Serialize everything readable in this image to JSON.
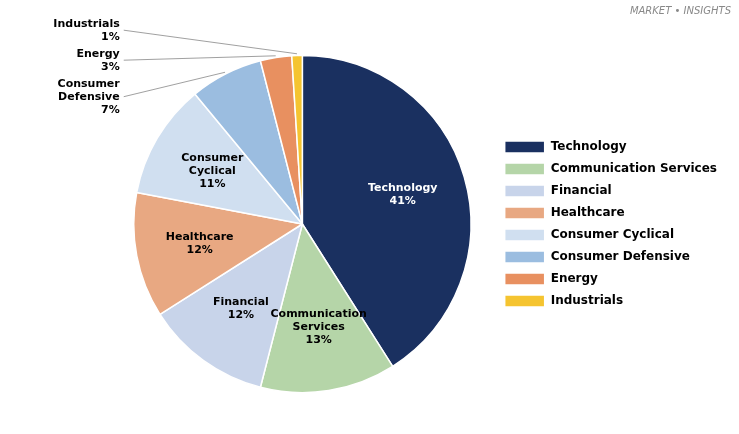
{
  "chart_data": {
    "type": "pie",
    "categories": [
      "Technology",
      "Communication Services",
      "Financial",
      "Healthcare",
      "Consumer Cyclical",
      "Consumer Defensive",
      "Energy",
      "Industrials"
    ],
    "values": [
      41,
      13,
      12,
      12,
      11,
      7,
      3,
      1
    ],
    "value_labels": [
      "41%",
      "13%",
      "12%",
      "12%",
      "11%",
      "7%",
      "3%",
      "1%"
    ],
    "colors": [
      "#1a3060",
      "#b5d5a8",
      "#c8d4ea",
      "#e8a882",
      "#d0dff0",
      "#9bbde0",
      "#e89060",
      "#f5c430"
    ],
    "data_labels": true,
    "legend": "right",
    "annotations": [
      "MARKET • INSIGHTS"
    ]
  }
}
